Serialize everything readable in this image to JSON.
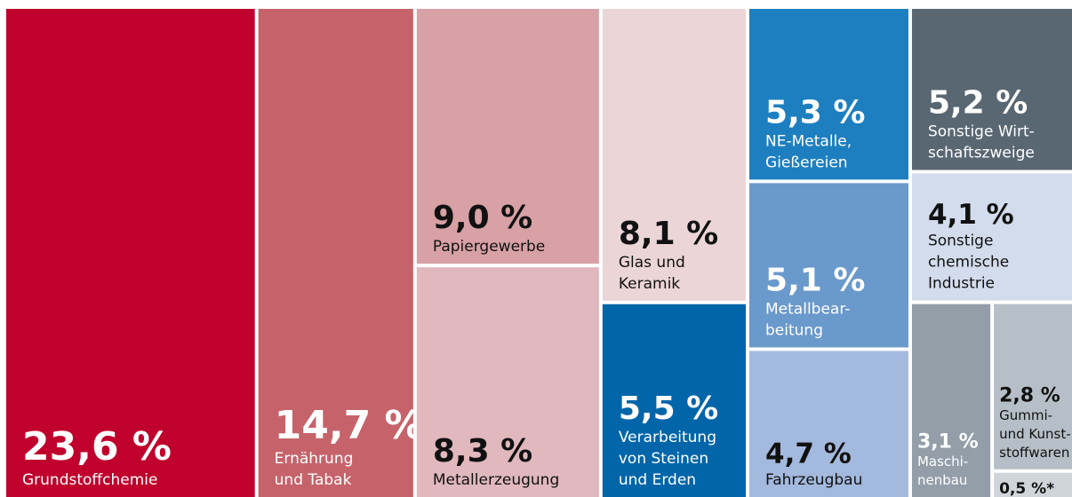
{
  "chart_data": {
    "type": "treemap",
    "items": [
      {
        "value": 23.6,
        "value_label": "23,6 %",
        "label": [
          "Grundstoffchemie"
        ],
        "color": "#c0002d",
        "text_color": "#ffffff"
      },
      {
        "value": 14.7,
        "value_label": "14,7 %",
        "label": [
          "Ernährung",
          "und Tabak"
        ],
        "color": "#c6636a",
        "text_color": "#ffffff"
      },
      {
        "value": 9.0,
        "value_label": "9,0 %",
        "label": [
          "Papiergewerbe"
        ],
        "color": "#d8a1a5",
        "text_color": "#111111"
      },
      {
        "value": 8.3,
        "value_label": "8,3 %",
        "label": [
          "Metallerzeugung"
        ],
        "color": "#e0b8bd",
        "text_color": "#111111"
      },
      {
        "value": 8.1,
        "value_label": "8,1 %",
        "label": [
          "Glas und",
          "Keramik"
        ],
        "color": "#ebd5d6",
        "text_color": "#111111"
      },
      {
        "value": 5.5,
        "value_label": "5,5 %",
        "label": [
          "Verarbeitung",
          "von Steinen",
          "und Erden"
        ],
        "color": "#0065a9",
        "text_color": "#ffffff"
      },
      {
        "value": 5.3,
        "value_label": "5,3 %",
        "label": [
          "NE-Metalle,",
          "Gießereien"
        ],
        "color": "#1e7fc0",
        "text_color": "#ffffff"
      },
      {
        "value": 5.1,
        "value_label": "5,1 %",
        "label": [
          "Metallbear-",
          "beitung"
        ],
        "color": "#6a99cb",
        "text_color": "#ffffff"
      },
      {
        "value": 4.7,
        "value_label": "4,7 %",
        "label": [
          "Fahrzeugbau"
        ],
        "color": "#a3b9de",
        "text_color": "#111111"
      },
      {
        "value": 5.2,
        "value_label": "5,2 %",
        "label": [
          "Sonstige Wirt-",
          "schaftszweige"
        ],
        "color": "#596773",
        "text_color": "#ffffff"
      },
      {
        "value": 4.1,
        "value_label": "4,1 %",
        "label": [
          "Sonstige",
          "chemische",
          "Industrie"
        ],
        "color": "#d3dcec",
        "text_color": "#111111"
      },
      {
        "value": 3.1,
        "value_label": "3,1 %",
        "label": [
          "Maschi-",
          "nenbau"
        ],
        "color": "#939ea8",
        "text_color": "#ffffff"
      },
      {
        "value": 2.8,
        "value_label": "2,8 %",
        "label": [
          "Gummi-",
          "und Kunst-",
          "stoffwaren"
        ],
        "color": "#b6bfc7",
        "text_color": "#111111"
      },
      {
        "value": 0.5,
        "value_label": "0,5 %*",
        "color": "#d0d5da",
        "text_color": "#111111"
      }
    ]
  }
}
